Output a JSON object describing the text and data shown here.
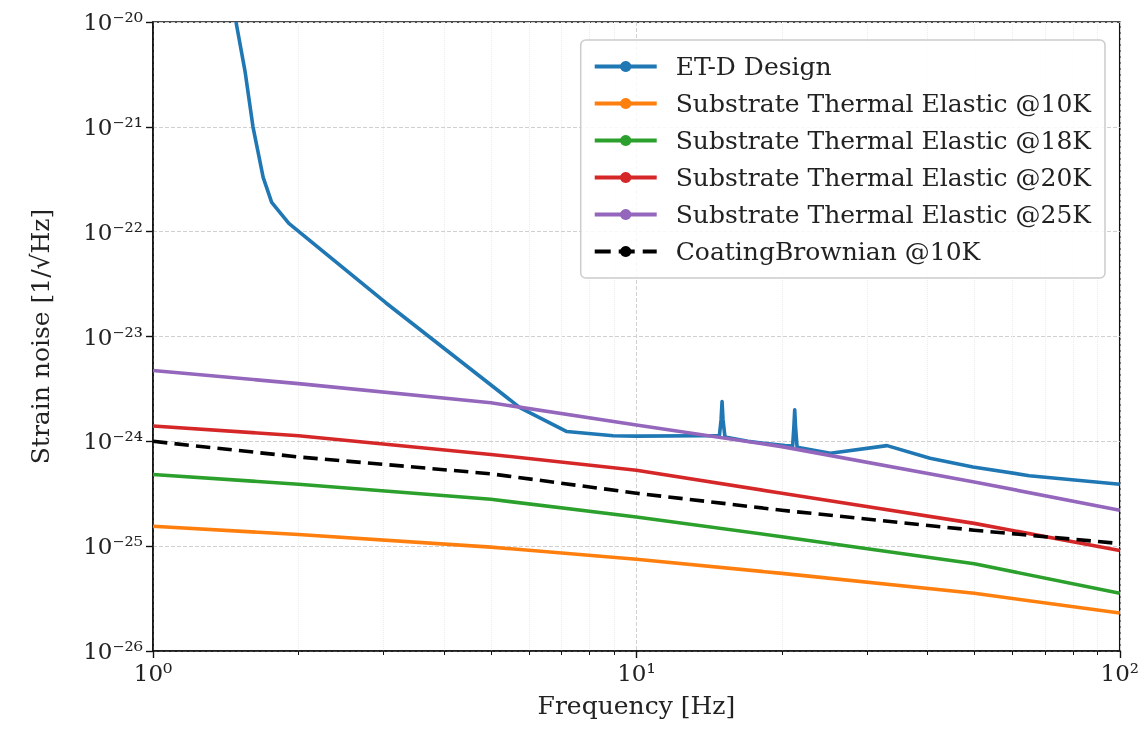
{
  "chart_data": {
    "type": "line",
    "xlabel": "Frequency [Hz]",
    "ylabel": "Strain noise [1/√Hz]",
    "log": "xy",
    "grid": true,
    "legend": "top right",
    "marker": "none",
    "xlim": [
      1,
      100
    ],
    "xticks": [
      {
        "value": 1,
        "label": "10⁰"
      },
      {
        "value": 10,
        "label": "10¹"
      },
      {
        "value": 100,
        "label": "10²"
      }
    ],
    "ylim": [
      1e-26,
      1e-20
    ],
    "yticks": [
      {
        "value": 1e-26,
        "label": "10⁻²⁶"
      },
      {
        "value": 1e-25,
        "label": "10⁻²⁵"
      },
      {
        "value": 1e-24,
        "label": "10⁻²⁴"
      },
      {
        "value": 1e-23,
        "label": "10⁻²³"
      },
      {
        "value": 1e-22,
        "label": "10⁻²²"
      },
      {
        "value": 1e-21,
        "label": "10⁻²¹"
      },
      {
        "value": 1e-20,
        "label": "10⁻²⁰"
      }
    ],
    "series": [
      {
        "name": "ET-D Design",
        "color": "#1f77b4",
        "line_style": "solid",
        "x": [
          1.485,
          1.55,
          1.61,
          1.69,
          1.76,
          1.91,
          3.03,
          5.74,
          7.18,
          8.95,
          10,
          13.5,
          14.85,
          14.97,
          15.04,
          15.11,
          15.25,
          17,
          20.3,
          21.05,
          21.18,
          21.26,
          21.34,
          21.5,
          25.2,
          33,
          40.5,
          49.7,
          65,
          100
        ],
        "values": [
          1e-20,
          3.4e-21,
          1e-21,
          3.3e-22,
          1.9e-22,
          1.2e-22,
          2.1e-23,
          2.1e-24,
          1.24e-24,
          1.13e-24,
          1.12e-24,
          1.13e-24,
          1.13e-24,
          1.6e-24,
          2.4e-24,
          1.6e-24,
          1.1e-24,
          1e-24,
          9.1e-25,
          9e-25,
          1.4e-24,
          2e-24,
          1.4e-24,
          8.8e-25,
          7.7e-25,
          9.1e-25,
          6.9e-25,
          5.7e-25,
          4.7e-25,
          3.9e-25
        ]
      },
      {
        "name": "Substrate Thermal Elastic @10K",
        "color": "#ff7f0e",
        "line_style": "solid",
        "x": [
          1,
          2,
          5,
          10,
          20,
          50,
          100
        ],
        "values": [
          1.55e-25,
          1.29e-25,
          9.8e-26,
          7.5e-26,
          5.5e-26,
          3.55e-26,
          2.3e-26
        ]
      },
      {
        "name": "Substrate Thermal Elastic @18K",
        "color": "#2ca02c",
        "line_style": "solid",
        "x": [
          1,
          2,
          5,
          10,
          20,
          50,
          100
        ],
        "values": [
          4.83e-25,
          3.9e-25,
          2.8e-25,
          1.9e-25,
          1.23e-25,
          6.8e-26,
          3.55e-26
        ]
      },
      {
        "name": "Substrate Thermal Elastic @20K",
        "color": "#d62728",
        "line_style": "solid",
        "x": [
          1,
          2,
          5,
          10,
          20,
          50,
          100
        ],
        "values": [
          1.4e-24,
          1.13e-24,
          7.5e-25,
          5.3e-25,
          3.2e-25,
          1.65e-25,
          9.1e-26
        ]
      },
      {
        "name": "Substrate Thermal Elastic @25K",
        "color": "#9467bd",
        "line_style": "solid",
        "x": [
          1,
          2,
          5,
          10,
          20,
          50,
          100
        ],
        "values": [
          4.74e-24,
          3.55e-24,
          2.33e-24,
          1.43e-24,
          8.9e-25,
          4.1e-25,
          2.2e-25
        ]
      },
      {
        "name": "CoatingBrownian @10K",
        "color": "#000000",
        "line_style": "dashed",
        "x": [
          1,
          2,
          5,
          10,
          20,
          50,
          100
        ],
        "values": [
          1e-24,
          7.1e-25,
          4.9e-25,
          3.2e-25,
          2.2e-25,
          1.42e-25,
          1.06e-25
        ]
      }
    ]
  }
}
